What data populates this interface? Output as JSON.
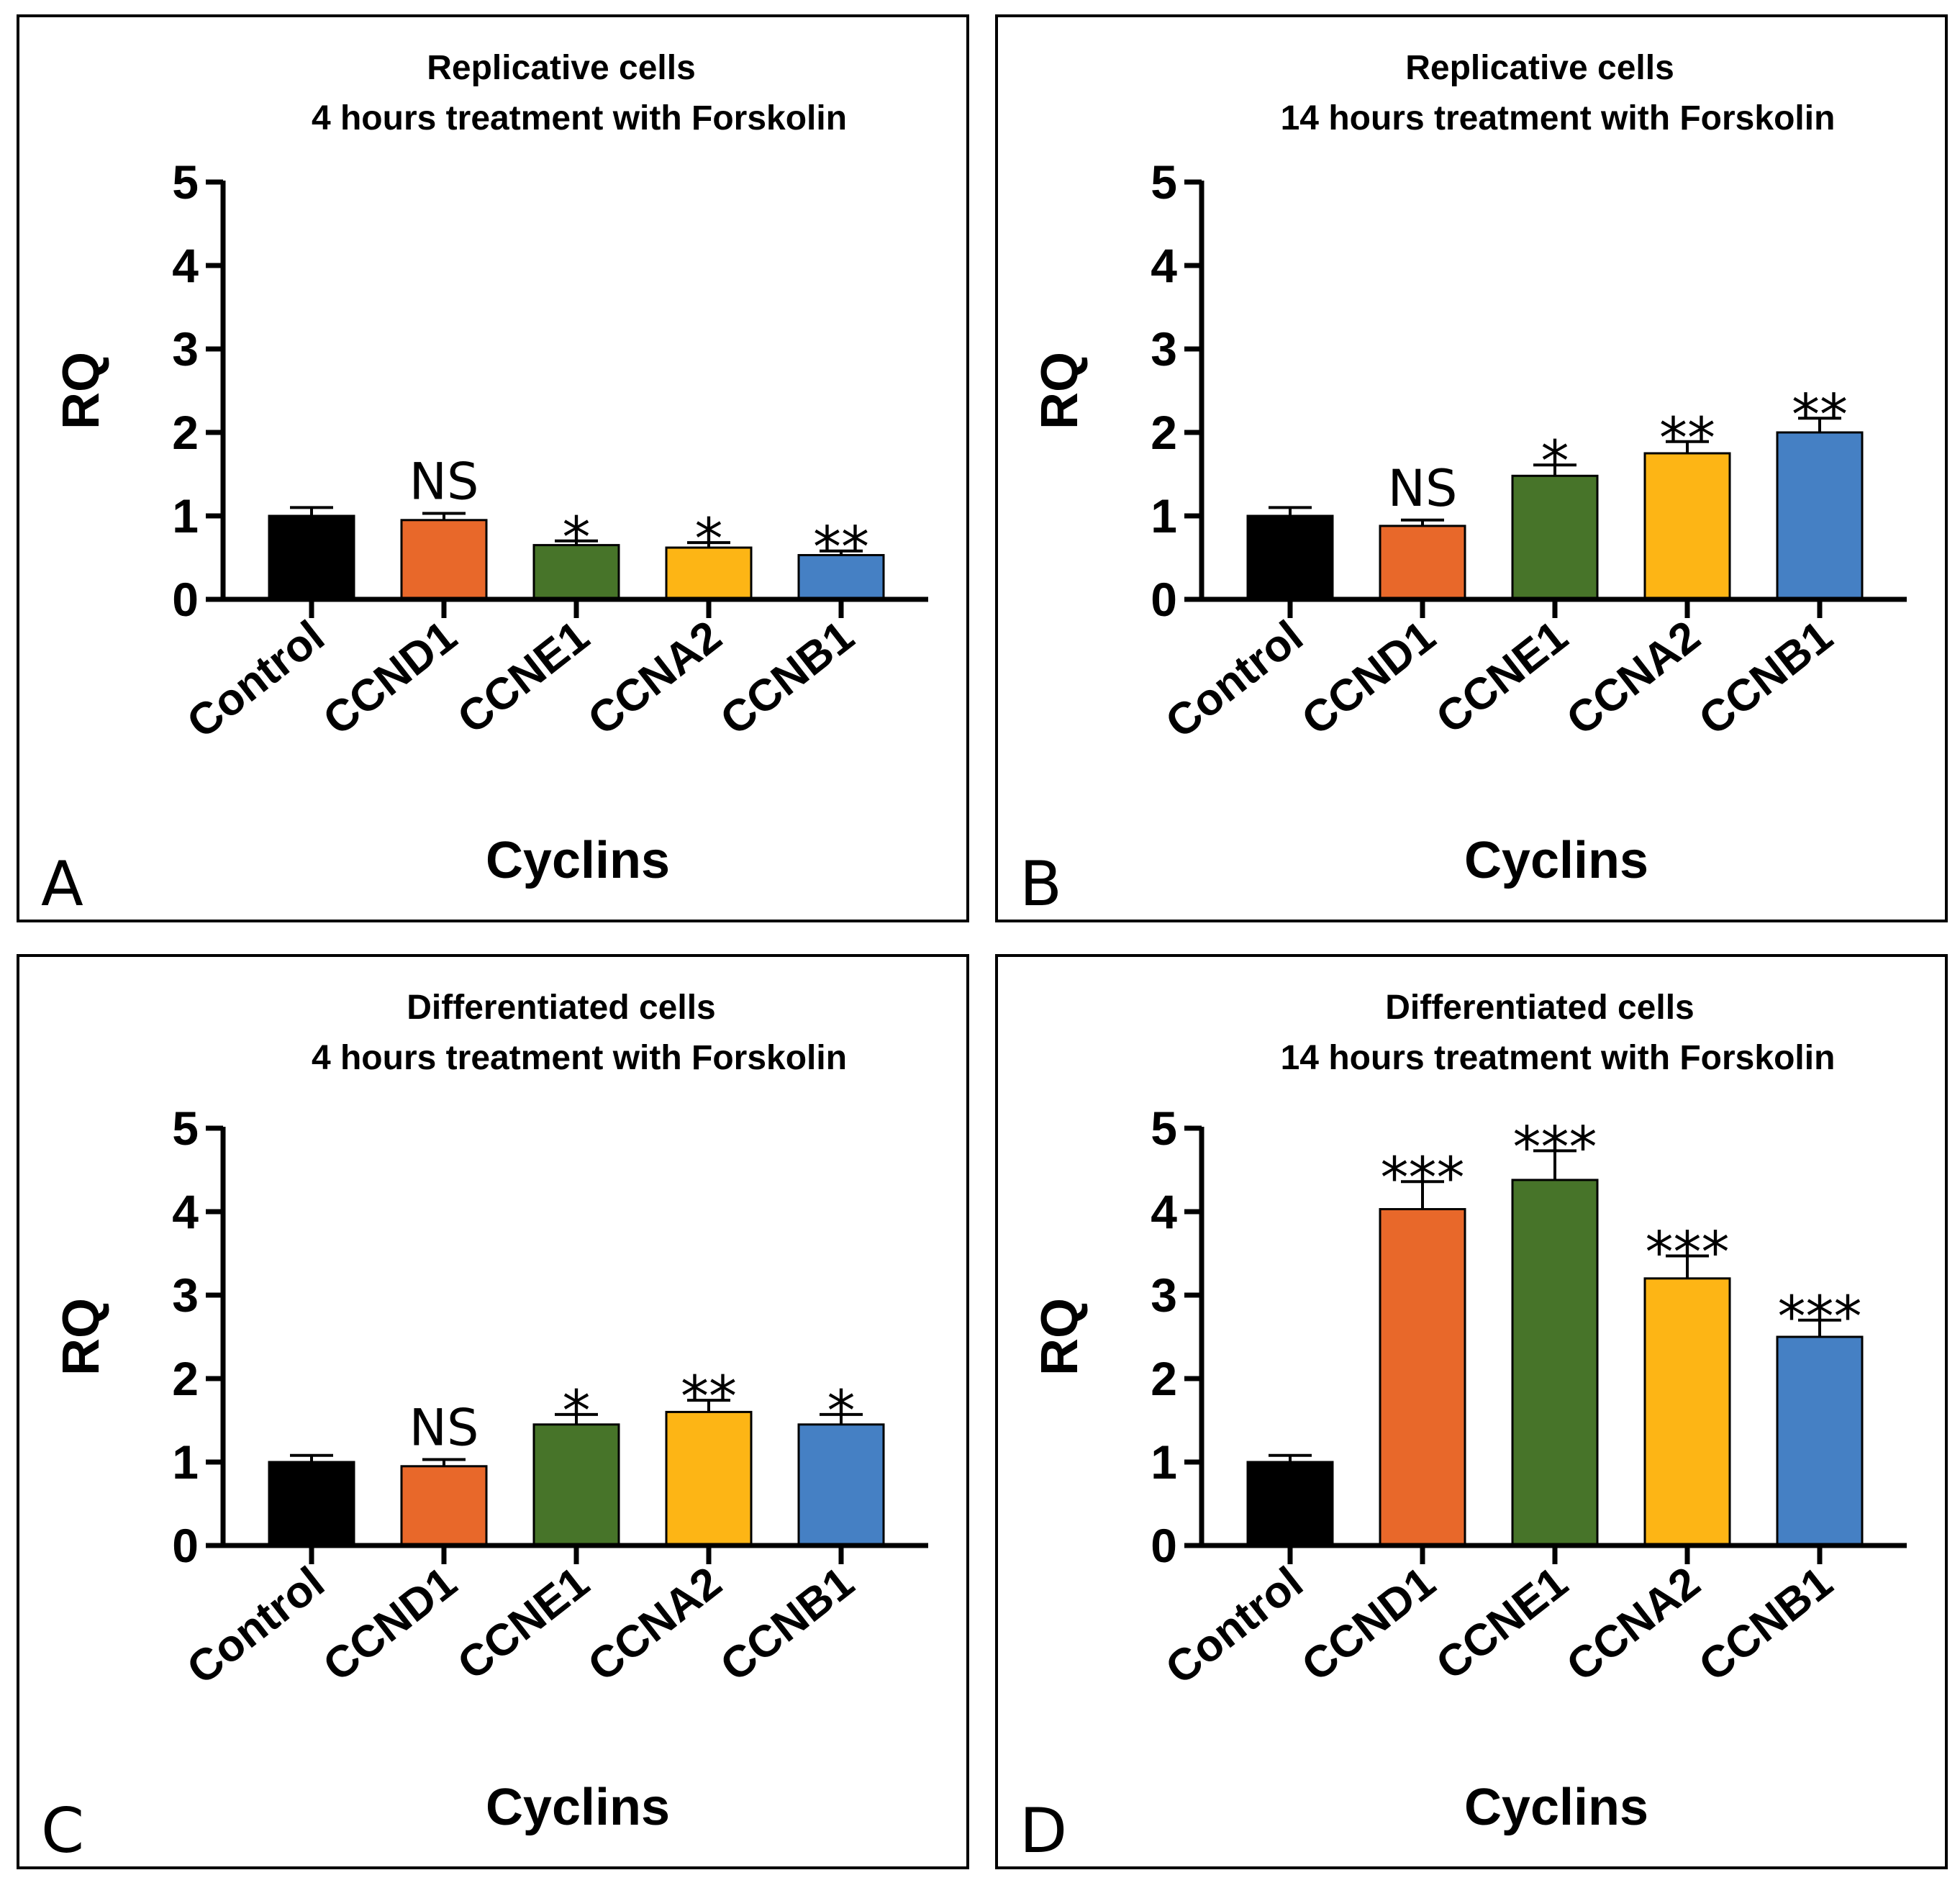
{
  "chart_data": [
    {
      "panel": "A",
      "type": "bar",
      "title": "Replicative cells",
      "subtitle": "4 hours treatment with Forskolin",
      "xlabel": "Cyclins",
      "ylabel": "RQ",
      "ylim": [
        0,
        5
      ],
      "yticks": [
        "0",
        "1",
        "2",
        "3",
        "4",
        "5"
      ],
      "categories": [
        "Control",
        "CCND1",
        "CCNE1",
        "CCNA2",
        "CCNB1"
      ],
      "values": [
        1.0,
        0.95,
        0.65,
        0.62,
        0.53
      ],
      "errors": [
        0.1,
        0.08,
        0.05,
        0.06,
        0.05
      ],
      "significance": [
        "",
        "NS",
        "*",
        "*",
        "**"
      ],
      "colors": [
        "#000000",
        "#e8682a",
        "#477429",
        "#fdb515",
        "#4580c4"
      ]
    },
    {
      "panel": "B",
      "type": "bar",
      "title": "Replicative cells",
      "subtitle": "14 hours treatment with Forskolin",
      "xlabel": "Cyclins",
      "ylabel": "RQ",
      "ylim": [
        0,
        5
      ],
      "yticks": [
        "0",
        "1",
        "2",
        "3",
        "4",
        "5"
      ],
      "categories": [
        "Control",
        "CCND1",
        "CCNE1",
        "CCNA2",
        "CCNB1"
      ],
      "values": [
        1.0,
        0.88,
        1.48,
        1.75,
        2.0
      ],
      "errors": [
        0.1,
        0.07,
        0.13,
        0.14,
        0.17
      ],
      "significance": [
        "",
        "NS",
        "*",
        "**",
        "**"
      ],
      "colors": [
        "#000000",
        "#e8682a",
        "#477429",
        "#fdb515",
        "#4580c4"
      ]
    },
    {
      "panel": "C",
      "type": "bar",
      "title": "Differentiated cells",
      "subtitle": "4 hours treatment with Forskolin",
      "xlabel": "Cyclins",
      "ylabel": "RQ",
      "ylim": [
        0,
        5
      ],
      "yticks": [
        "0",
        "1",
        "2",
        "3",
        "4",
        "5"
      ],
      "categories": [
        "Control",
        "CCND1",
        "CCNE1",
        "CCNA2",
        "CCNB1"
      ],
      "values": [
        1.0,
        0.95,
        1.45,
        1.6,
        1.45
      ],
      "errors": [
        0.08,
        0.08,
        0.12,
        0.14,
        0.12
      ],
      "significance": [
        "",
        "NS",
        "*",
        "**",
        "*"
      ],
      "colors": [
        "#000000",
        "#e8682a",
        "#477429",
        "#fdb515",
        "#4580c4"
      ]
    },
    {
      "panel": "D",
      "type": "bar",
      "title": "Differentiated cells",
      "subtitle": "14 hours treatment with Forskolin",
      "xlabel": "Cyclins",
      "ylabel": "RQ",
      "ylim": [
        0,
        5
      ],
      "yticks": [
        "0",
        "1",
        "2",
        "3",
        "4",
        "5"
      ],
      "categories": [
        "Control",
        "CCND1",
        "CCNE1",
        "CCNA2",
        "CCNB1"
      ],
      "values": [
        1.0,
        4.03,
        4.38,
        3.2,
        2.5
      ],
      "errors": [
        0.08,
        0.33,
        0.35,
        0.27,
        0.2
      ],
      "significance": [
        "",
        "***",
        "***",
        "***",
        "***"
      ],
      "colors": [
        "#000000",
        "#e8682a",
        "#477429",
        "#fdb515",
        "#4580c4"
      ]
    }
  ]
}
